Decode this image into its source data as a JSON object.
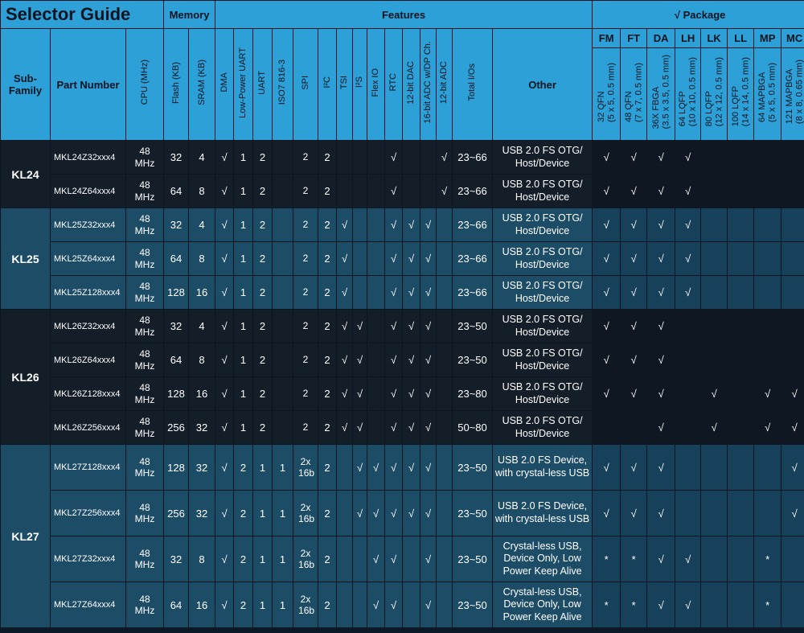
{
  "title": "Selector Guide",
  "groups": {
    "memory": "Memory",
    "features": "Features",
    "package": "√   Package"
  },
  "columns": {
    "subfamily": "Sub-Family",
    "part": "Part Number",
    "cpu": "CPU (MHz)",
    "flash": "Flash (KB)",
    "sram": "SRAM (KB)",
    "dma": "DMA",
    "lpuart": "Low-Power UART",
    "uart": "UART",
    "iso": "ISO7 816-3",
    "spi": "SPI",
    "i2c": "I²C",
    "tsi": "TSI",
    "i2s": "I²S",
    "flexio": "Flex IO",
    "rtc": "RTC",
    "dac": "12-bit DAC",
    "adc16": "16-bit ADC w/DP Ch.",
    "adc12": "12-bit ADC",
    "ios": "Total I/Os",
    "other": "Other"
  },
  "packages": [
    {
      "code": "FM",
      "desc": "32 QFN",
      "dim": "(5 x 5, 0.5 mm)"
    },
    {
      "code": "FT",
      "desc": "48 QFN",
      "dim": "(7 x 7, 0.5 mm)"
    },
    {
      "code": "DA",
      "desc": "36X FBGA",
      "dim": "(3.5 x 3.5, 0.5 mm)"
    },
    {
      "code": "LH",
      "desc": "64 LQFP",
      "dim": "(10 x 10, 0.5 mm)"
    },
    {
      "code": "LK",
      "desc": "80 LQFP",
      "dim": "(12 x 12, 0.5 mm)"
    },
    {
      "code": "LL",
      "desc": "100 LQFP",
      "dim": "(14 x 14, 0.5 mm)"
    },
    {
      "code": "MP",
      "desc": "64 MAPBGA",
      "dim": "(5 x 5, 0.5 mm)"
    },
    {
      "code": "MC",
      "desc": "121 MAPBGA",
      "dim": "(8 x 8, 0.65 mm)"
    }
  ],
  "families": [
    {
      "name": "KL24",
      "rows": [
        {
          "part": "MKL24Z32xxx4",
          "cpu": "48 MHz",
          "flash": "32",
          "sram": "4",
          "dma": "√",
          "lpuart": "1",
          "uart": "2",
          "iso": "",
          "spi": "2",
          "i2c": "2",
          "tsi": "",
          "i2s": "",
          "flexio": "",
          "rtc": "√",
          "dac": "",
          "adc16": "",
          "adc12": "√",
          "ios": "23~66",
          "other": "USB 2.0 FS OTG/ Host/Device",
          "pkg": [
            "√",
            "√",
            "√",
            "√",
            "",
            "",
            "",
            ""
          ]
        },
        {
          "part": "MKL24Z64xxx4",
          "cpu": "48 MHz",
          "flash": "64",
          "sram": "8",
          "dma": "√",
          "lpuart": "1",
          "uart": "2",
          "iso": "",
          "spi": "2",
          "i2c": "2",
          "tsi": "",
          "i2s": "",
          "flexio": "",
          "rtc": "√",
          "dac": "",
          "adc16": "",
          "adc12": "√",
          "ios": "23~66",
          "other": "USB 2.0 FS OTG/ Host/Device",
          "pkg": [
            "√",
            "√",
            "√",
            "√",
            "",
            "",
            "",
            ""
          ]
        }
      ]
    },
    {
      "name": "KL25",
      "rows": [
        {
          "part": "MKL25Z32xxx4",
          "cpu": "48 MHz",
          "flash": "32",
          "sram": "4",
          "dma": "√",
          "lpuart": "1",
          "uart": "2",
          "iso": "",
          "spi": "2",
          "i2c": "2",
          "tsi": "√",
          "i2s": "",
          "flexio": "",
          "rtc": "√",
          "dac": "√",
          "adc16": "√",
          "adc12": "",
          "ios": "23~66",
          "other": "USB 2.0 FS OTG/ Host/Device",
          "pkg": [
            "√",
            "√",
            "√",
            "√",
            "",
            "",
            "",
            ""
          ]
        },
        {
          "part": "MKL25Z64xxx4",
          "cpu": "48 MHz",
          "flash": "64",
          "sram": "8",
          "dma": "√",
          "lpuart": "1",
          "uart": "2",
          "iso": "",
          "spi": "2",
          "i2c": "2",
          "tsi": "√",
          "i2s": "",
          "flexio": "",
          "rtc": "√",
          "dac": "√",
          "adc16": "√",
          "adc12": "",
          "ios": "23~66",
          "other": "USB 2.0 FS OTG/ Host/Device",
          "pkg": [
            "√",
            "√",
            "√",
            "√",
            "",
            "",
            "",
            ""
          ]
        },
        {
          "part": "MKL25Z128xxx4",
          "cpu": "48 MHz",
          "flash": "128",
          "sram": "16",
          "dma": "√",
          "lpuart": "1",
          "uart": "2",
          "iso": "",
          "spi": "2",
          "i2c": "2",
          "tsi": "√",
          "i2s": "",
          "flexio": "",
          "rtc": "√",
          "dac": "√",
          "adc16": "√",
          "adc12": "",
          "ios": "23~66",
          "other": "USB 2.0 FS OTG/ Host/Device",
          "pkg": [
            "√",
            "√",
            "√",
            "√",
            "",
            "",
            "",
            ""
          ]
        }
      ]
    },
    {
      "name": "KL26",
      "rows": [
        {
          "part": "MKL26Z32xxx4",
          "cpu": "48 MHz",
          "flash": "32",
          "sram": "4",
          "dma": "√",
          "lpuart": "1",
          "uart": "2",
          "iso": "",
          "spi": "2",
          "i2c": "2",
          "tsi": "√",
          "i2s": "√",
          "flexio": "",
          "rtc": "√",
          "dac": "√",
          "adc16": "√",
          "adc12": "",
          "ios": "23~50",
          "other": "USB 2.0 FS OTG/ Host/Device",
          "pkg": [
            "√",
            "√",
            "√",
            "",
            "",
            "",
            "",
            ""
          ]
        },
        {
          "part": "MKL26Z64xxx4",
          "cpu": "48 MHz",
          "flash": "64",
          "sram": "8",
          "dma": "√",
          "lpuart": "1",
          "uart": "2",
          "iso": "",
          "spi": "2",
          "i2c": "2",
          "tsi": "√",
          "i2s": "√",
          "flexio": "",
          "rtc": "√",
          "dac": "√",
          "adc16": "√",
          "adc12": "",
          "ios": "23~50",
          "other": "USB 2.0 FS OTG/ Host/Device",
          "pkg": [
            "√",
            "√",
            "√",
            "",
            "",
            "",
            "",
            ""
          ]
        },
        {
          "part": "MKL26Z128xxx4",
          "cpu": "48 MHz",
          "flash": "128",
          "sram": "16",
          "dma": "√",
          "lpuart": "1",
          "uart": "2",
          "iso": "",
          "spi": "2",
          "i2c": "2",
          "tsi": "√",
          "i2s": "√",
          "flexio": "",
          "rtc": "√",
          "dac": "√",
          "adc16": "√",
          "adc12": "",
          "ios": "23~80",
          "other": "USB 2.0 FS OTG/ Host/Device",
          "pkg": [
            "√",
            "√",
            "√",
            "",
            "√",
            "",
            "√",
            "√"
          ]
        },
        {
          "part": "MKL26Z256xxx4",
          "cpu": "48 MHz",
          "flash": "256",
          "sram": "32",
          "dma": "√",
          "lpuart": "1",
          "uart": "2",
          "iso": "",
          "spi": "2",
          "i2c": "2",
          "tsi": "√",
          "i2s": "√",
          "flexio": "",
          "rtc": "√",
          "dac": "√",
          "adc16": "√",
          "adc12": "",
          "ios": "50~80",
          "other": "USB 2.0 FS OTG/ Host/Device",
          "pkg": [
            "",
            "",
            "√",
            "",
            "√",
            "",
            "√",
            "√"
          ]
        }
      ]
    },
    {
      "name": "KL27",
      "rows": [
        {
          "part": "MKL27Z128xxx4",
          "cpu": "48 MHz",
          "flash": "128",
          "sram": "32",
          "dma": "√",
          "lpuart": "2",
          "uart": "1",
          "iso": "1",
          "spi": "2x 16b",
          "i2c": "2",
          "tsi": "",
          "i2s": "√",
          "flexio": "√",
          "rtc": "√",
          "dac": "√",
          "adc16": "√",
          "adc12": "",
          "ios": "23~50",
          "other": "USB 2.0 FS Device, with crystal-less USB",
          "pkg": [
            "√",
            "√",
            "√",
            "",
            "",
            "",
            "",
            "√"
          ]
        },
        {
          "part": "MKL27Z256xxx4",
          "cpu": "48 MHz",
          "flash": "256",
          "sram": "32",
          "dma": "√",
          "lpuart": "2",
          "uart": "1",
          "iso": "1",
          "spi": "2x 16b",
          "i2c": "2",
          "tsi": "",
          "i2s": "√",
          "flexio": "√",
          "rtc": "√",
          "dac": "√",
          "adc16": "√",
          "adc12": "",
          "ios": "23~50",
          "other": "USB 2.0 FS Device, with crystal-less USB",
          "pkg": [
            "√",
            "√",
            "√",
            "",
            "",
            "",
            "",
            "√"
          ]
        },
        {
          "part": "MKL27Z32xxx4",
          "cpu": "48 MHz",
          "flash": "32",
          "sram": "8",
          "dma": "√",
          "lpuart": "2",
          "uart": "1",
          "iso": "1",
          "spi": "2x 16b",
          "i2c": "2",
          "tsi": "",
          "i2s": "",
          "flexio": "√",
          "rtc": "√",
          "dac": "",
          "adc16": "√",
          "adc12": "",
          "ios": "23~50",
          "other": "Crystal-less USB, Device Only, Low Power Keep Alive",
          "pkg": [
            "*",
            "*",
            "√",
            "√",
            "",
            "",
            "*",
            ""
          ]
        },
        {
          "part": "MKL27Z64xxx4",
          "cpu": "48 MHz",
          "flash": "64",
          "sram": "16",
          "dma": "√",
          "lpuart": "2",
          "uart": "1",
          "iso": "1",
          "spi": "2x 16b",
          "i2c": "2",
          "tsi": "",
          "i2s": "",
          "flexio": "√",
          "rtc": "√",
          "dac": "",
          "adc16": "√",
          "adc12": "",
          "ios": "23~50",
          "other": "Crystal-less USB, Device Only, Low Power Keep Alive",
          "pkg": [
            "*",
            "*",
            "√",
            "√",
            "",
            "",
            "*",
            ""
          ]
        }
      ]
    }
  ]
}
